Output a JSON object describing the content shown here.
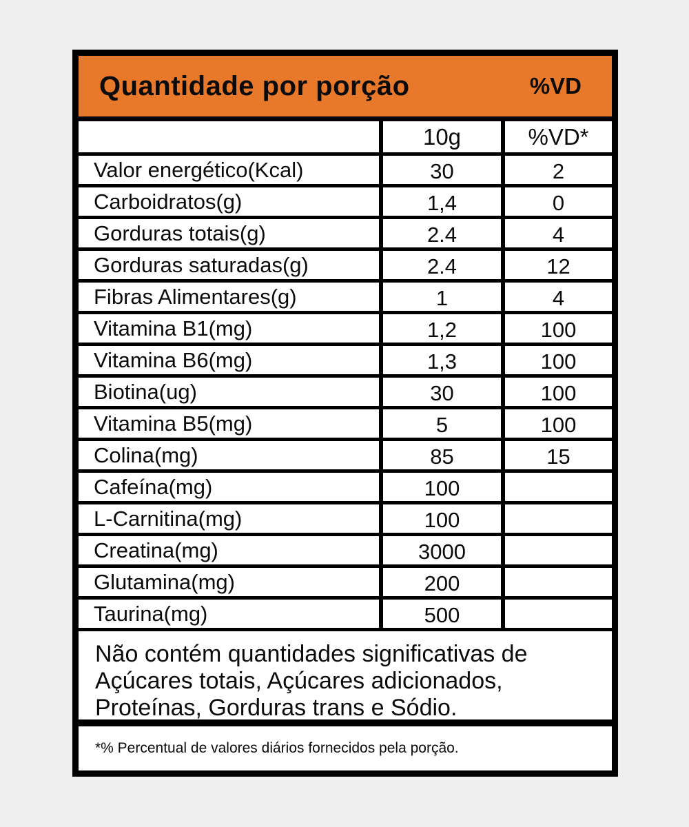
{
  "colors": {
    "accent_orange": "#e8782a",
    "border_black": "#000000",
    "page_background": "#efefef"
  },
  "header": {
    "title": "Quantidade por porção",
    "vd_label": "%VD"
  },
  "columns": {
    "name": "",
    "serving": "10g",
    "vd": "%VD*"
  },
  "rows": [
    {
      "name": "Valor energético(Kcal)",
      "amount": "30",
      "vd": "2"
    },
    {
      "name": "Carboidratos(g)",
      "amount": "1,4",
      "vd": "0"
    },
    {
      "name": "Gorduras totais(g)",
      "amount": "2.4",
      "vd": "4"
    },
    {
      "name": "Gorduras saturadas(g)",
      "amount": "2.4",
      "vd": "12"
    },
    {
      "name": "Fibras Alimentares(g)",
      "amount": "1",
      "vd": "4"
    },
    {
      "name": "Vitamina B1(mg)",
      "amount": "1,2",
      "vd": "100"
    },
    {
      "name": "Vitamina B6(mg)",
      "amount": "1,3",
      "vd": "100"
    },
    {
      "name": "Biotina(ug)",
      "amount": "30",
      "vd": "100"
    },
    {
      "name": "Vitamina B5(mg)",
      "amount": "5",
      "vd": "100"
    },
    {
      "name": "Colina(mg)",
      "amount": "85",
      "vd": "15"
    },
    {
      "name": "Cafeína(mg)",
      "amount": "100",
      "vd": ""
    },
    {
      "name": "L-Carnitina(mg)",
      "amount": "100",
      "vd": ""
    },
    {
      "name": "Creatina(mg)",
      "amount": "3000",
      "vd": ""
    },
    {
      "name": "Glutamina(mg)",
      "amount": "200",
      "vd": ""
    },
    {
      "name": "Taurina(mg)",
      "amount": "500",
      "vd": ""
    }
  ],
  "note": "Não contém quantidades significativas de Açúcares totais, Açúcares adicionados, Proteínas, Gorduras trans e Sódio.",
  "footnote": "*% Percentual de valores diários fornecidos pela porção."
}
